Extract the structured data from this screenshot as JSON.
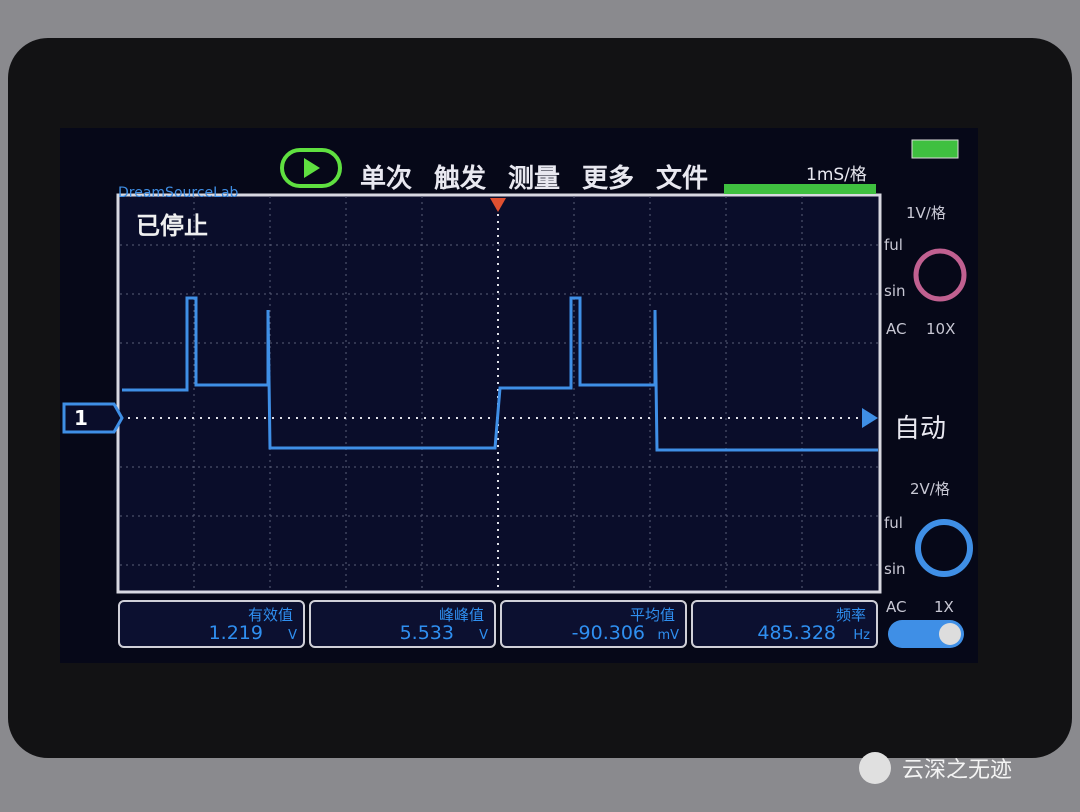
{
  "header": {
    "brand": "DreamSourceLab",
    "menu": [
      "单次",
      "触发",
      "测量",
      "更多",
      "文件"
    ],
    "timebase": "1mS/格"
  },
  "screen": {
    "status": "已停止",
    "channel": "1",
    "trigger_mode": "自动"
  },
  "ch1": {
    "scale": "1V/格",
    "labels": [
      "ful",
      "sin"
    ],
    "coupling": "AC",
    "probe": "10X"
  },
  "ch2": {
    "scale": "2V/格",
    "labels": [
      "ful",
      "sin"
    ],
    "coupling": "AC",
    "probe": "1X"
  },
  "measurements": [
    {
      "label": "有效值",
      "value": 1.219,
      "unit": "V"
    },
    {
      "label": "峰峰值",
      "value": 5.533,
      "unit": "V"
    },
    {
      "label": "平均值",
      "value": -90.306,
      "unit": "mV"
    },
    {
      "label": "频率",
      "value": 485.328,
      "unit": "Hz"
    }
  ],
  "watermark": "云深之无迹"
}
